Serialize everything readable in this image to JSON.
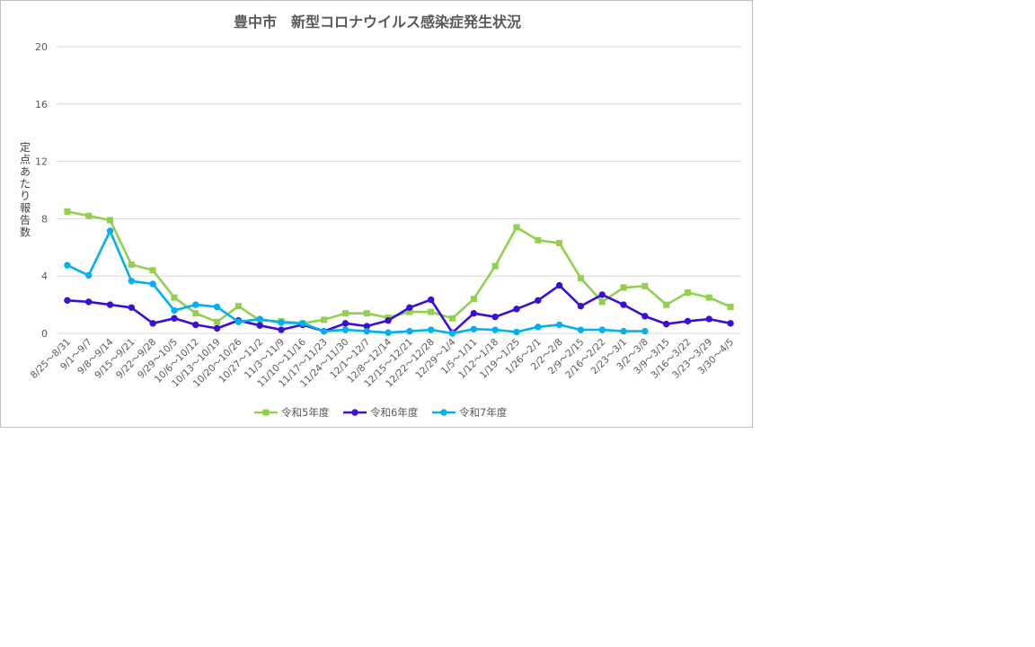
{
  "chart_data": {
    "type": "line",
    "title": "豊中市　新型コロナウイルス感染症発生状況",
    "ylabel": "定点あたり報告数",
    "ylim": [
      0,
      20
    ],
    "yticks": [
      0,
      4,
      8,
      12,
      16,
      20
    ],
    "grid": true,
    "legend": "bottom",
    "categories": [
      "8/25～8/31",
      "9/1～9/7",
      "9/8～9/14",
      "9/15～9/21",
      "9/22～9/28",
      "9/29～10/5",
      "10/6～10/12",
      "10/13～10/19",
      "10/20～10/26",
      "10/27～11/2",
      "11/3～11/9",
      "11/10～11/16",
      "11/17～11/23",
      "11/24～11/30",
      "12/1～12/7",
      "12/8～12/14",
      "12/15～12/21",
      "12/22～12/28",
      "12/29～1/4",
      "1/5～1/11",
      "1/12～1/18",
      "1/19～1/25",
      "1/26～2/1",
      "2/2～2/8",
      "2/9～2/15",
      "2/16～2/22",
      "2/23～3/1",
      "3/2～3/8",
      "3/9～3/15",
      "3/16～3/22",
      "3/23～3/29",
      "3/30～4/5"
    ],
    "series": [
      {
        "name": "令和5年度",
        "color": "#92d050",
        "marker": "square",
        "values": [
          8.5,
          8.2,
          7.9,
          4.8,
          4.4,
          2.5,
          1.4,
          0.8,
          1.9,
          0.9,
          0.85,
          0.7,
          0.95,
          1.4,
          1.4,
          1.1,
          1.5,
          1.5,
          1.05,
          2.4,
          4.7,
          7.4,
          6.5,
          6.3,
          3.85,
          2.2,
          3.2,
          3.3,
          2.0,
          2.85,
          2.5,
          1.85
        ]
      },
      {
        "name": "令和6年度",
        "color": "#3a0fd6",
        "marker": "circle",
        "values": [
          2.3,
          2.2,
          2.0,
          1.8,
          0.7,
          1.05,
          0.6,
          0.35,
          0.9,
          0.55,
          0.25,
          0.6,
          0.15,
          0.7,
          0.5,
          0.9,
          1.8,
          2.35,
          0.05,
          1.4,
          1.15,
          1.7,
          2.3,
          3.35,
          1.9,
          2.7,
          2.0,
          1.2,
          0.65,
          0.85,
          1.0,
          0.7
        ]
      },
      {
        "name": "令和7年度",
        "color": "#00b0f0",
        "marker": "circle",
        "values": [
          4.75,
          4.05,
          7.15,
          3.65,
          3.45,
          1.6,
          2.0,
          1.85,
          0.8,
          1.0,
          0.75,
          0.7,
          0.15,
          0.25,
          0.15,
          0.05,
          0.15,
          0.25,
          0.0,
          0.3,
          0.25,
          0.1,
          0.45,
          0.6,
          0.25,
          0.25,
          0.15,
          0.15,
          null,
          null,
          null,
          null
        ]
      }
    ]
  }
}
